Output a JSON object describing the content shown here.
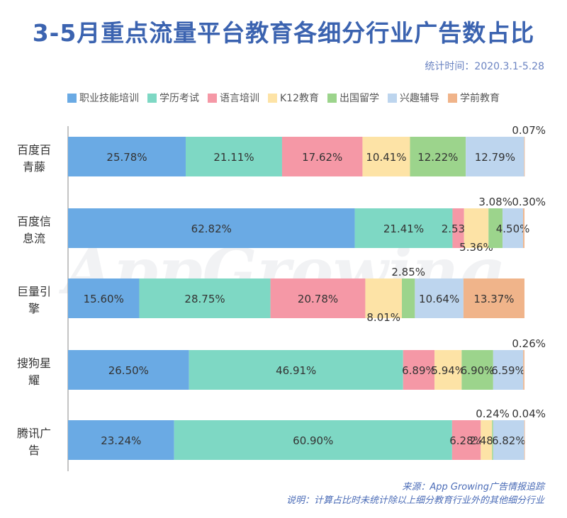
{
  "title": "3-5月重点流量平台教育各细分行业广告数占比",
  "date_range": "统计时间：2020.3.1-5.28",
  "legend": [
    {
      "label": "职业技能培训",
      "color": "#6aaae4"
    },
    {
      "label": "学历考试",
      "color": "#7ed8c4"
    },
    {
      "label": "语言培训",
      "color": "#f598a6"
    },
    {
      "label": "K12教育",
      "color": "#fde3a6"
    },
    {
      "label": "出国留学",
      "color": "#9cd48c"
    },
    {
      "label": "兴趣辅导",
      "color": "#bdd5ee"
    },
    {
      "label": "学前教育",
      "color": "#f0b48a"
    }
  ],
  "chart_data": {
    "type": "bar",
    "orientation": "horizontal",
    "stacked": true,
    "categories": [
      [
        "百度百",
        "青藤"
      ],
      [
        "百度信",
        "息流"
      ],
      [
        "巨量引",
        "擎"
      ],
      [
        "搜狗星",
        "耀"
      ],
      [
        "腾讯广",
        "告"
      ]
    ],
    "series": [
      {
        "name": "职业技能培训",
        "values": [
          25.78,
          62.82,
          15.6,
          26.5,
          23.24
        ]
      },
      {
        "name": "学历考试",
        "values": [
          21.11,
          21.41,
          28.75,
          46.91,
          60.9
        ]
      },
      {
        "name": "语言培训",
        "values": [
          17.62,
          2.53,
          20.78,
          6.89,
          6.28
        ]
      },
      {
        "name": "K12教育",
        "values": [
          10.41,
          5.36,
          8.01,
          5.94,
          2.48
        ]
      },
      {
        "name": "出国留学",
        "values": [
          12.22,
          3.08,
          2.85,
          6.9,
          0.24
        ]
      },
      {
        "name": "兴趣辅导",
        "values": [
          12.79,
          4.5,
          10.64,
          6.59,
          6.82
        ]
      },
      {
        "name": "学前教育",
        "values": [
          0.07,
          0.3,
          13.37,
          0.26,
          0.04
        ]
      }
    ],
    "labels": [
      [
        "25.78%",
        "21.11%",
        "17.62%",
        "10.41%",
        "12.22%",
        "12.79%",
        "0.07%"
      ],
      [
        "62.82%",
        "21.41%",
        "2.53%",
        "5.36%",
        "3.08%",
        "4.50%",
        "0.30%"
      ],
      [
        "15.60%",
        "28.75%",
        "20.78%",
        "8.01%",
        "2.85%",
        "10.64%",
        "13.37%"
      ],
      [
        "26.50%",
        "46.91%",
        "6.89%",
        "5.94%",
        "6.90%",
        "6.59%",
        "0.26%"
      ],
      [
        "23.24%",
        "60.90%",
        "6.28%",
        "2.48%",
        "0.24%",
        "6.82%",
        "0.04%"
      ]
    ],
    "label_positions": [
      [
        "in",
        "in",
        "in",
        "in",
        "in",
        "in",
        "above"
      ],
      [
        "in",
        "in",
        "in",
        "below",
        "above",
        "in",
        "above"
      ],
      [
        "in",
        "in",
        "in",
        "below",
        "above",
        "in",
        "in"
      ],
      [
        "in",
        "in",
        "in",
        "in",
        "in",
        "in",
        "above"
      ],
      [
        "in",
        "in",
        "in",
        "in",
        "above",
        "in",
        "above"
      ]
    ],
    "xlim": [
      0,
      100
    ]
  },
  "watermark": "AppGrowing",
  "footer": {
    "source": "来源：App Growing广告情报追踪",
    "note": "说明：计算占比时未统计除以上细分教育行业外的其他细分行业"
  }
}
